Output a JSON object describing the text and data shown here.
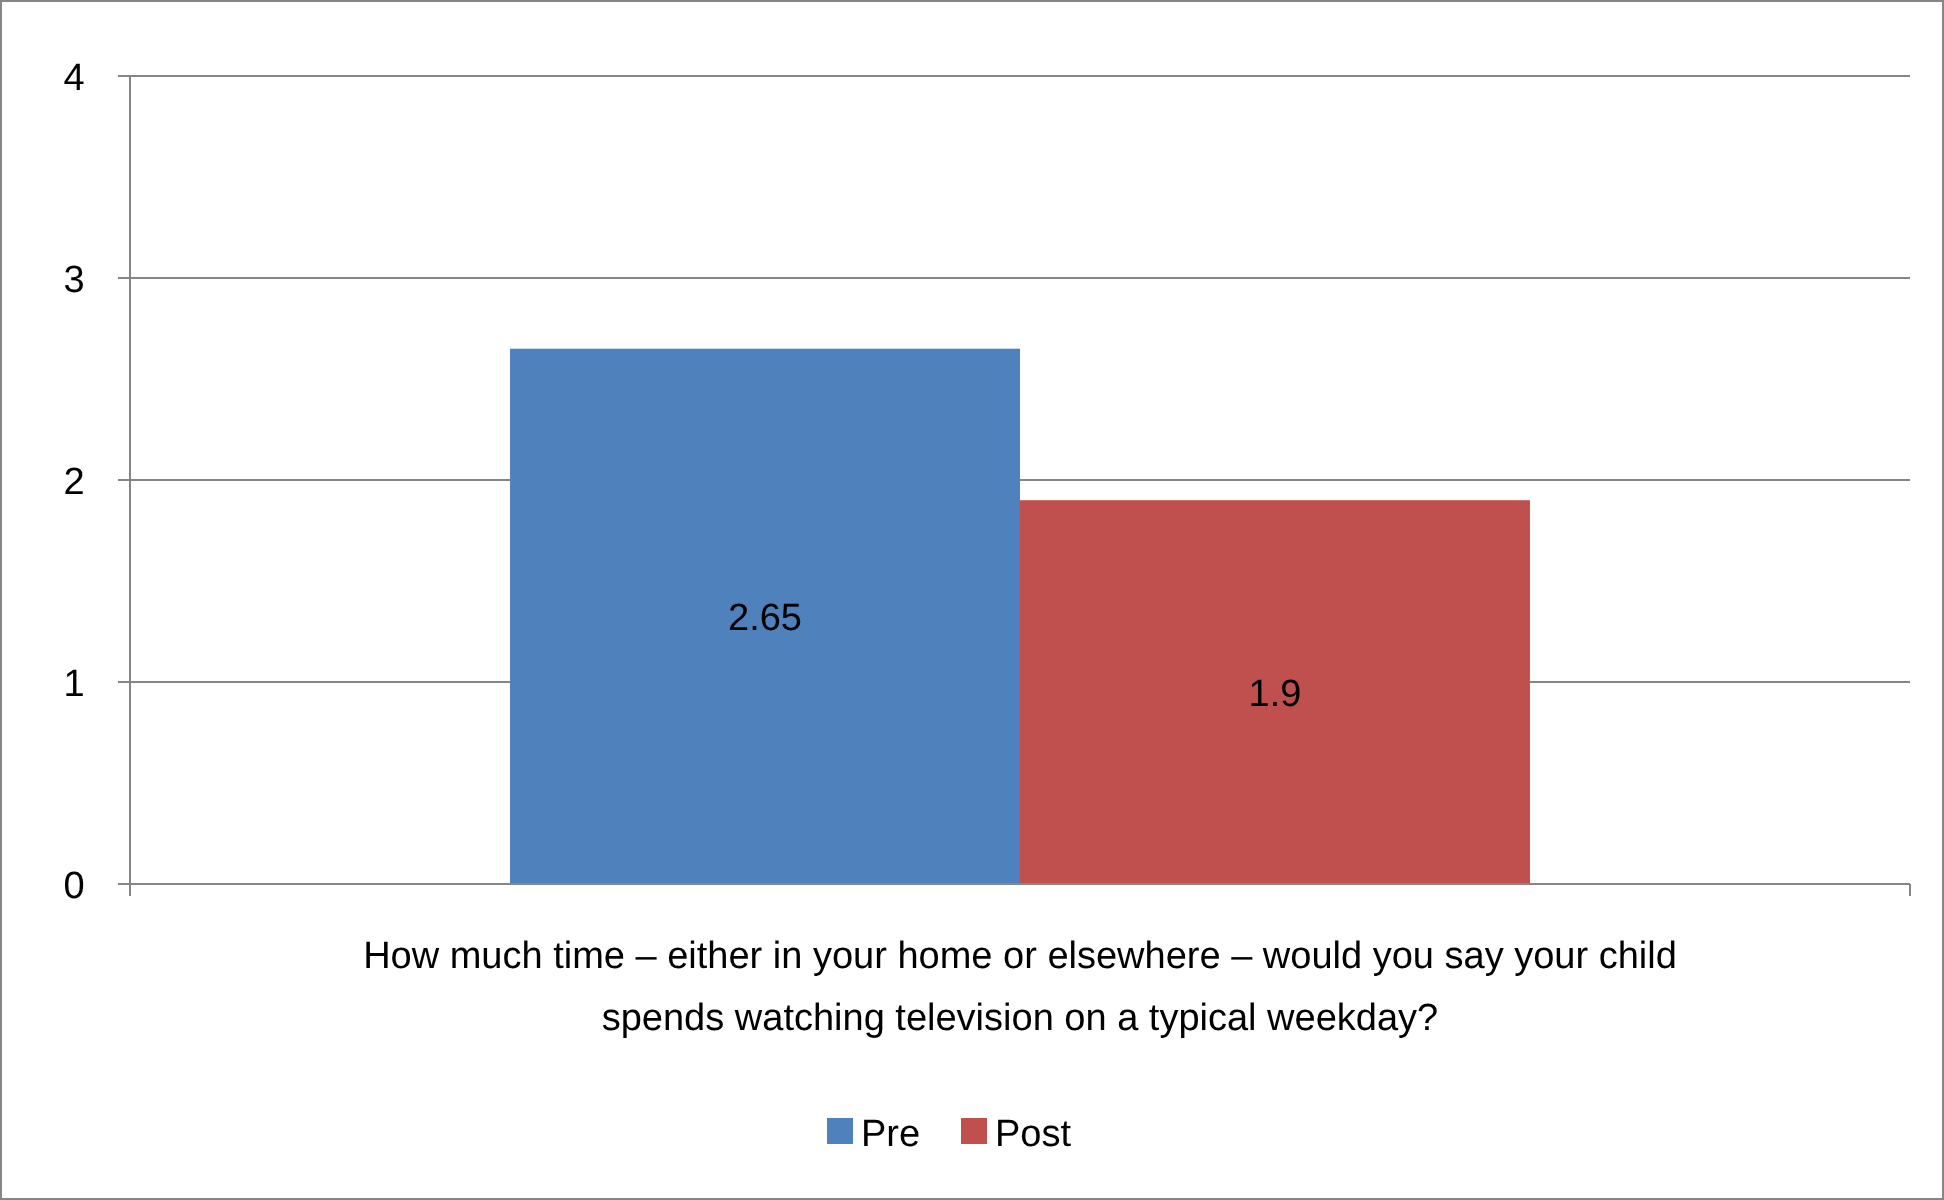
{
  "chart_data": {
    "type": "bar",
    "categories": [
      "How much time – either in your home or elsewhere – would you say your child spends watching television on a typical weekday?"
    ],
    "series": [
      {
        "name": "Pre",
        "color": "#4f81bd",
        "values": [
          2.65
        ]
      },
      {
        "name": "Post",
        "color": "#c0504d",
        "values": [
          1.9
        ]
      }
    ],
    "ylim": [
      0,
      4
    ],
    "yticks": [
      0,
      1,
      2,
      3,
      4
    ],
    "grid": "y",
    "legend": "bottom",
    "data_labels": true
  }
}
